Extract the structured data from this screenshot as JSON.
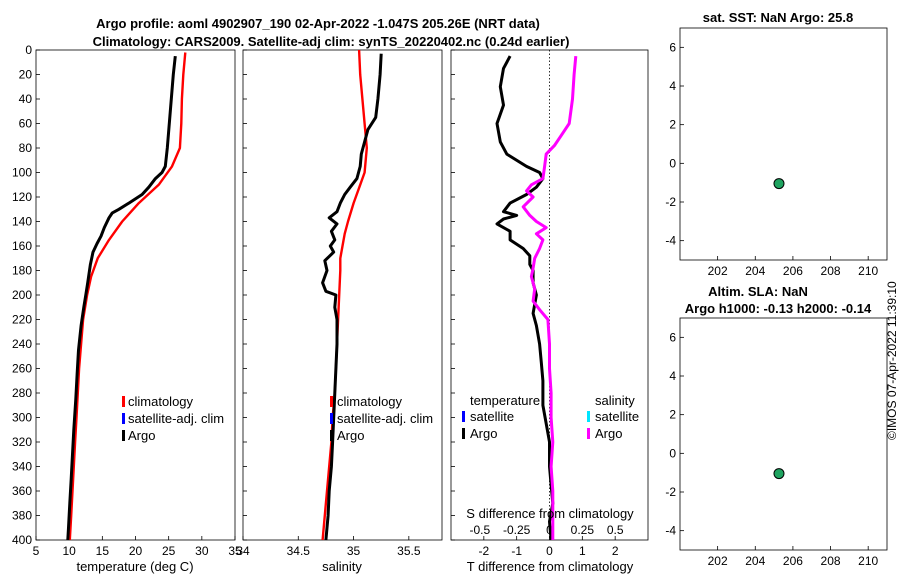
{
  "header": {
    "title_line1": "Argo profile: aoml 4902907_190 02-Apr-2022 -1.047S 205.26E (NRT data)",
    "title_line2": "Climatology: CARS2009. Satellite-adj clim: synTS_20220402.nc (0.24d earlier)"
  },
  "stamp": "©IMOS 07-Apr-2022 11:39:10",
  "colors": {
    "climatology": "#ff0000",
    "satellite_adj": "#0000ff",
    "argo": "#000000",
    "salinity_argo": "#ff00ff",
    "salinity_satellite": "#00e5ff",
    "marker_fill": "#1fa360",
    "zero_line": "#000000"
  },
  "chart_data": [
    {
      "id": "temperature",
      "type": "line",
      "xlabel": "temperature (deg C)",
      "ylabel": "",
      "xlim": [
        5,
        35
      ],
      "ylim": [
        0,
        400
      ],
      "xticks": [
        5,
        10,
        15,
        20,
        25,
        30,
        35
      ],
      "yticks": [
        0,
        20,
        40,
        60,
        80,
        100,
        120,
        140,
        160,
        180,
        200,
        220,
        240,
        260,
        280,
        300,
        320,
        340,
        360,
        380,
        400
      ],
      "legend": [
        "climatology",
        "satellite-adj. clim",
        "Argo"
      ],
      "series": [
        {
          "name": "climatology",
          "color": "#ff0000",
          "points": [
            [
              27.5,
              2
            ],
            [
              27.2,
              20
            ],
            [
              27.0,
              40
            ],
            [
              26.9,
              60
            ],
            [
              26.7,
              80
            ],
            [
              25.5,
              95
            ],
            [
              23.5,
              110
            ],
            [
              20.5,
              125
            ],
            [
              18.0,
              140
            ],
            [
              16.0,
              155
            ],
            [
              14.3,
              170
            ],
            [
              13.3,
              185
            ],
            [
              12.7,
              200
            ],
            [
              12.1,
              220
            ],
            [
              11.8,
              240
            ],
            [
              11.5,
              260
            ],
            [
              11.3,
              280
            ],
            [
              11.1,
              300
            ],
            [
              10.9,
              320
            ],
            [
              10.7,
              340
            ],
            [
              10.5,
              360
            ],
            [
              10.3,
              380
            ],
            [
              10.1,
              400
            ]
          ]
        },
        {
          "name": "Argo",
          "color": "#000000",
          "points": [
            [
              26.0,
              5
            ],
            [
              25.7,
              20
            ],
            [
              25.4,
              40
            ],
            [
              25.1,
              60
            ],
            [
              24.8,
              80
            ],
            [
              24.5,
              95
            ],
            [
              24.0,
              100
            ],
            [
              23.0,
              105
            ],
            [
              22.0,
              112
            ],
            [
              21.0,
              118
            ],
            [
              19.0,
              125
            ],
            [
              17.5,
              130
            ],
            [
              16.5,
              133
            ],
            [
              16.0,
              137
            ],
            [
              15.3,
              145
            ],
            [
              14.8,
              152
            ],
            [
              14.2,
              158
            ],
            [
              13.6,
              165
            ],
            [
              13.4,
              170
            ],
            [
              13.2,
              175
            ],
            [
              12.8,
              190
            ],
            [
              12.5,
              200
            ],
            [
              12.2,
              210
            ],
            [
              11.8,
              225
            ],
            [
              11.4,
              245
            ],
            [
              11.2,
              265
            ],
            [
              11.0,
              285
            ],
            [
              10.7,
              310
            ],
            [
              10.5,
              330
            ],
            [
              10.3,
              350
            ],
            [
              10.1,
              370
            ],
            [
              9.9,
              390
            ],
            [
              9.8,
              400
            ]
          ]
        }
      ]
    },
    {
      "id": "salinity",
      "type": "line",
      "xlabel": "salinity",
      "ylabel": "",
      "xlim": [
        34,
        35.8
      ],
      "ylim": [
        0,
        400
      ],
      "xticks": [
        34,
        34.5,
        35,
        35.5
      ],
      "legend": [
        "climatology",
        "satellite-adj. clim",
        "Argo"
      ],
      "series": [
        {
          "name": "climatology",
          "color": "#ff0000",
          "points": [
            [
              35.05,
              0
            ],
            [
              35.06,
              20
            ],
            [
              35.08,
              40
            ],
            [
              35.1,
              60
            ],
            [
              35.12,
              80
            ],
            [
              35.1,
              100
            ],
            [
              35.06,
              110
            ],
            [
              35.0,
              125
            ],
            [
              34.95,
              140
            ],
            [
              34.92,
              150
            ],
            [
              34.9,
              160
            ],
            [
              34.88,
              170
            ],
            [
              34.88,
              180
            ],
            [
              34.87,
              200
            ],
            [
              34.86,
              220
            ],
            [
              34.85,
              240
            ],
            [
              34.84,
              260
            ],
            [
              34.83,
              280
            ],
            [
              34.81,
              300
            ],
            [
              34.8,
              320
            ],
            [
              34.78,
              340
            ],
            [
              34.76,
              360
            ],
            [
              34.74,
              380
            ],
            [
              34.72,
              400
            ]
          ]
        },
        {
          "name": "Argo",
          "color": "#000000",
          "points": [
            [
              35.25,
              3
            ],
            [
              35.24,
              20
            ],
            [
              35.22,
              40
            ],
            [
              35.2,
              55
            ],
            [
              35.13,
              65
            ],
            [
              35.1,
              75
            ],
            [
              35.07,
              85
            ],
            [
              35.06,
              95
            ],
            [
              35.03,
              105
            ],
            [
              34.97,
              112
            ],
            [
              34.92,
              118
            ],
            [
              34.88,
              125
            ],
            [
              34.85,
              132
            ],
            [
              34.78,
              137
            ],
            [
              34.85,
              142
            ],
            [
              34.8,
              148
            ],
            [
              34.83,
              155
            ],
            [
              34.79,
              160
            ],
            [
              34.82,
              165
            ],
            [
              34.74,
              172
            ],
            [
              34.76,
              180
            ],
            [
              34.72,
              190
            ],
            [
              34.75,
              197
            ],
            [
              34.84,
              200
            ],
            [
              34.83,
              210
            ],
            [
              34.85,
              220
            ],
            [
              34.85,
              240
            ],
            [
              34.84,
              260
            ],
            [
              34.83,
              280
            ],
            [
              34.82,
              300
            ],
            [
              34.81,
              320
            ],
            [
              34.8,
              340
            ],
            [
              34.78,
              360
            ],
            [
              34.77,
              380
            ],
            [
              34.75,
              400
            ]
          ]
        }
      ]
    },
    {
      "id": "difference",
      "type": "line",
      "xlabel": "T difference from climatology",
      "top_axis_label": "S difference from climatology",
      "xlim": [
        -3,
        3
      ],
      "ylim": [
        0,
        400
      ],
      "xticks": [
        -2,
        -1,
        0,
        1,
        2
      ],
      "top_xtick_labels": [
        "-0.5",
        "-0.25",
        "0",
        "0.25",
        "0.5"
      ],
      "legend_groups": [
        {
          "title": "temperature",
          "items": [
            "satellite",
            "Argo"
          ]
        },
        {
          "title": "salinity",
          "items": [
            "satellite",
            "Argo"
          ]
        }
      ],
      "series": [
        {
          "name": "temperature Argo",
          "color": "#000000",
          "points": [
            [
              -1.2,
              5
            ],
            [
              -1.4,
              15
            ],
            [
              -1.5,
              30
            ],
            [
              -1.4,
              45
            ],
            [
              -1.6,
              60
            ],
            [
              -1.5,
              75
            ],
            [
              -1.3,
              85
            ],
            [
              -0.7,
              95
            ],
            [
              -0.3,
              100
            ],
            [
              -0.2,
              105
            ],
            [
              -0.4,
              112
            ],
            [
              -0.7,
              118
            ],
            [
              -1.2,
              125
            ],
            [
              -1.4,
              132
            ],
            [
              -1.0,
              135
            ],
            [
              -1.4,
              138
            ],
            [
              -1.6,
              142
            ],
            [
              -1.2,
              148
            ],
            [
              -1.2,
              155
            ],
            [
              -0.8,
              162
            ],
            [
              -0.6,
              168
            ],
            [
              -0.6,
              175
            ],
            [
              -0.5,
              180
            ],
            [
              -0.5,
              190
            ],
            [
              -0.4,
              200
            ],
            [
              -0.5,
              215
            ],
            [
              -0.4,
              225
            ],
            [
              -0.3,
              240
            ],
            [
              -0.25,
              255
            ],
            [
              -0.2,
              270
            ],
            [
              -0.2,
              290
            ],
            [
              -0.1,
              305
            ],
            [
              0.0,
              320
            ],
            [
              0.0,
              340
            ],
            [
              0.05,
              355
            ],
            [
              0.1,
              370
            ],
            [
              0.0,
              385
            ],
            [
              0.05,
              400
            ]
          ]
        },
        {
          "name": "salinity Argo",
          "color": "#ff00ff",
          "points": [
            [
              0.8,
              5
            ],
            [
              0.75,
              20
            ],
            [
              0.7,
              40
            ],
            [
              0.6,
              60
            ],
            [
              0.35,
              70
            ],
            [
              0.15,
              78
            ],
            [
              -0.1,
              85
            ],
            [
              -0.15,
              95
            ],
            [
              -0.2,
              105
            ],
            [
              -0.55,
              110
            ],
            [
              -0.7,
              115
            ],
            [
              -0.5,
              120
            ],
            [
              -0.8,
              128
            ],
            [
              -0.6,
              135
            ],
            [
              -0.4,
              140
            ],
            [
              -0.1,
              145
            ],
            [
              -0.4,
              150
            ],
            [
              -0.2,
              155
            ],
            [
              -0.3,
              162
            ],
            [
              -0.45,
              170
            ],
            [
              -0.5,
              178
            ],
            [
              -0.55,
              185
            ],
            [
              -0.45,
              195
            ],
            [
              -0.5,
              205
            ],
            [
              -0.3,
              212
            ],
            [
              -0.05,
              220
            ],
            [
              0.0,
              240
            ],
            [
              0.0,
              260
            ],
            [
              0.05,
              280
            ],
            [
              0.05,
              300
            ],
            [
              0.1,
              320
            ],
            [
              0.05,
              340
            ],
            [
              0.1,
              360
            ],
            [
              0.1,
              380
            ],
            [
              0.1,
              400
            ]
          ]
        }
      ]
    },
    {
      "id": "sst",
      "type": "scatter",
      "title": "sat. SST: NaN Argo: 25.8",
      "xlim": [
        200,
        211
      ],
      "ylim": [
        -5,
        7
      ],
      "xticks": [
        202,
        204,
        206,
        208,
        210
      ],
      "yticks": [
        -4,
        -2,
        0,
        2,
        4,
        6
      ],
      "points": [
        {
          "x": 205.26,
          "y": -1.047
        }
      ]
    },
    {
      "id": "sla",
      "type": "scatter",
      "title_line1": "Altim. SLA: NaN",
      "title_line2": "Argo h1000: -0.13 h2000: -0.14",
      "xlim": [
        200,
        211
      ],
      "ylim": [
        -5,
        7
      ],
      "xticks": [
        202,
        204,
        206,
        208,
        210
      ],
      "yticks": [
        -4,
        -2,
        0,
        2,
        4,
        6
      ],
      "points": [
        {
          "x": 205.26,
          "y": -1.047
        }
      ]
    }
  ]
}
